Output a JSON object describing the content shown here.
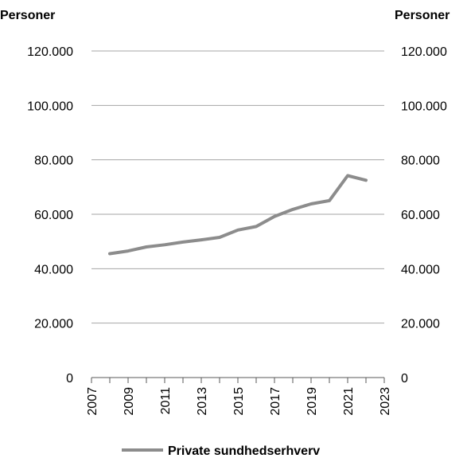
{
  "chart_data": {
    "type": "line",
    "y_unit_left": "Personer",
    "y_unit_right": "Personer",
    "x_ticks": [
      "2007",
      "2009",
      "2011",
      "2013",
      "2015",
      "2017",
      "2019",
      "2021",
      "2023"
    ],
    "y_ticks": [
      "0",
      "20.000",
      "40.000",
      "60.000",
      "80.000",
      "100.000",
      "120.000"
    ],
    "y_tick_values": [
      0,
      20000,
      40000,
      60000,
      80000,
      100000,
      120000
    ],
    "xlim": [
      2007,
      2023
    ],
    "ylim": [
      0,
      120000
    ],
    "grid": "horizontal",
    "legend_position": "bottom",
    "series": [
      {
        "name": "Private sundhedserhverv",
        "color": "#8c8c8c",
        "x": [
          2008,
          2009,
          2010,
          2011,
          2012,
          2013,
          2014,
          2015,
          2016,
          2017,
          2018,
          2019,
          2020,
          2021,
          2022
        ],
        "values": [
          45500,
          46500,
          48000,
          48800,
          49800,
          50600,
          51500,
          54200,
          55500,
          59200,
          61800,
          63800,
          65000,
          74200,
          72500
        ]
      }
    ]
  }
}
